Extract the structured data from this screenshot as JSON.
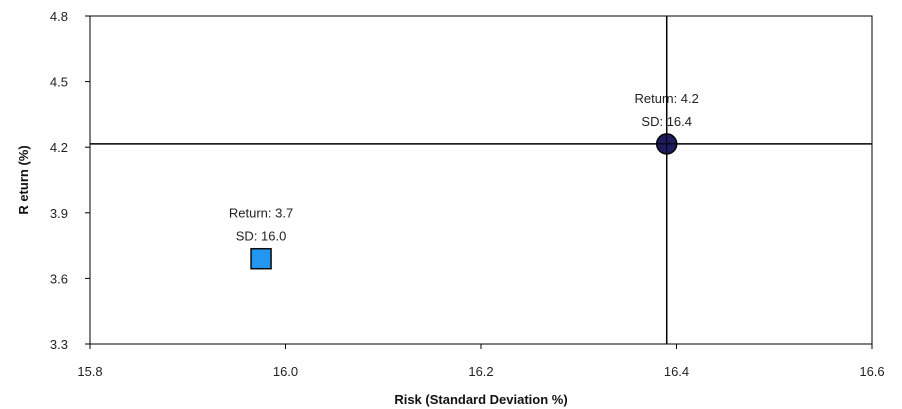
{
  "chart_data": {
    "type": "scatter",
    "title": "",
    "xlabel": "Risk (Standard Deviation %)",
    "ylabel": "R eturn  (%)",
    "xlim": [
      15.8,
      16.6
    ],
    "ylim": [
      3.3,
      4.8
    ],
    "x_ticks": [
      "15.8",
      "16.0",
      "16.2",
      "16.4",
      "16.6"
    ],
    "y_ticks": [
      "3.3",
      "3.6",
      "3.9",
      "4.2",
      "4.5",
      "4.8"
    ],
    "grid": false,
    "points": [
      {
        "x": 15.975,
        "y": 3.69,
        "marker": "square",
        "color": "#2196f3",
        "label_line1": "Return: 3.7",
        "label_line2": "SD: 16.0"
      },
      {
        "x": 16.39,
        "y": 4.215,
        "marker": "circle-crosshair",
        "color": "#1c1c5e",
        "label_line1": "Return: 4.2",
        "label_line2": "SD: 16.4"
      }
    ],
    "crosshair": {
      "x": 16.39,
      "y": 4.215,
      "color": "#000000"
    }
  }
}
